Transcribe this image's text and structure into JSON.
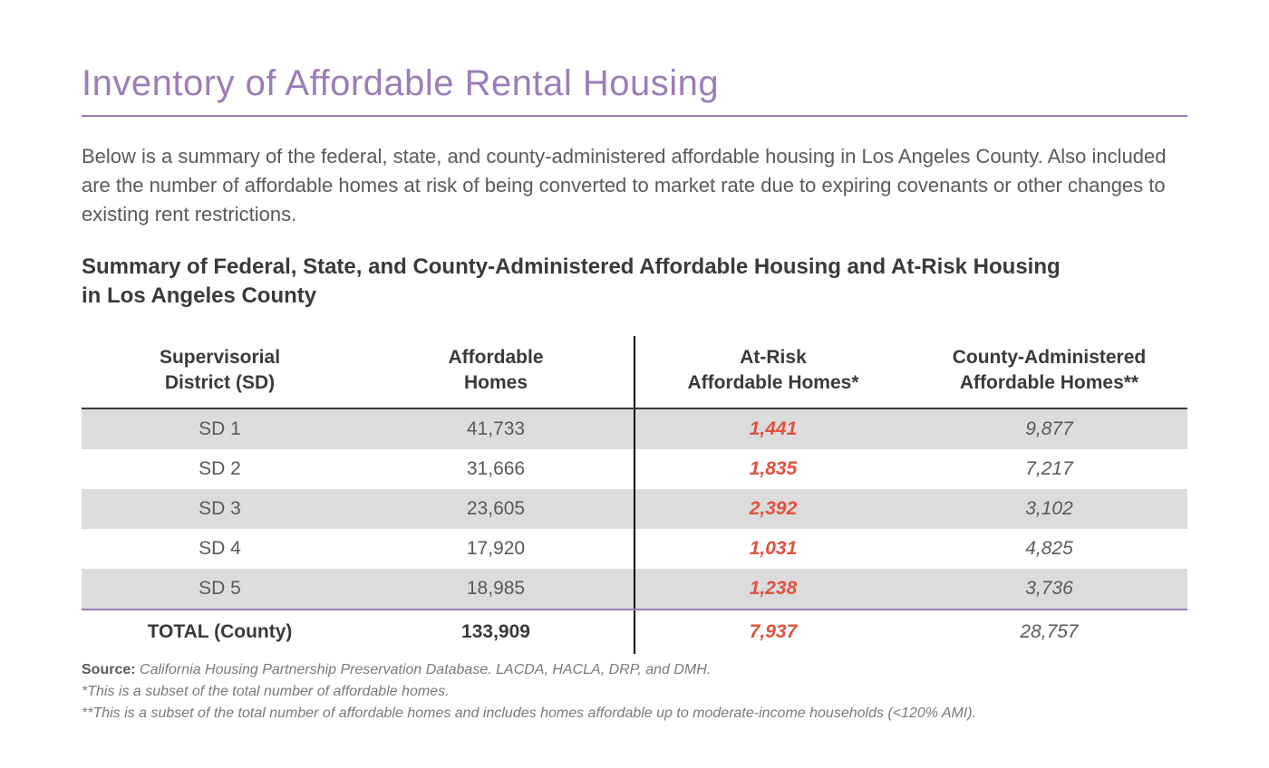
{
  "title": "Inventory of Affordable Rental Housing",
  "intro": "Below is a summary of the federal, state, and county-administered affordable housing in Los Angeles County. Also included are the number of affordable homes at risk of being converted to market rate due to expiring covenants or other changes to existing rent restrictions.",
  "subtitle": "Summary of Federal, State, and County-Administered Affordable Housing and At-Risk Housing in Los Angeles County",
  "table": {
    "type": "table",
    "columns": [
      {
        "label_line1": "Supervisorial",
        "label_line2": "District (SD)",
        "align": "center"
      },
      {
        "label_line1": "Affordable",
        "label_line2": "Homes",
        "align": "center"
      },
      {
        "label_line1": "At-Risk",
        "label_line2": "Affordable Homes*",
        "align": "center",
        "color": "#e0523e",
        "italic": true
      },
      {
        "label_line1": "County-Administered",
        "label_line2": "Affordable Homes**",
        "align": "center",
        "italic": true
      }
    ],
    "rows": [
      {
        "district": "SD 1",
        "affordable": "41,733",
        "at_risk": "1,441",
        "county_admin": "9,877"
      },
      {
        "district": "SD 2",
        "affordable": "31,666",
        "at_risk": "1,835",
        "county_admin": "7,217"
      },
      {
        "district": "SD 3",
        "affordable": "23,605",
        "at_risk": "2,392",
        "county_admin": "3,102"
      },
      {
        "district": "SD 4",
        "affordable": "17,920",
        "at_risk": "1,031",
        "county_admin": "4,825"
      },
      {
        "district": "SD 5",
        "affordable": "18,985",
        "at_risk": "1,238",
        "county_admin": "3,736"
      }
    ],
    "total": {
      "label": "TOTAL (County)",
      "affordable": "133,909",
      "at_risk": "7,937",
      "county_admin": "28,757"
    },
    "stripe_color": "#dcdcdc",
    "divider_color": "#000000",
    "header_border_color": "#3a3a3a",
    "bottom_border_color": "#9d7db8",
    "at_risk_color": "#e0523e",
    "text_color": "#5a5a5a",
    "header_fontsize": 21,
    "cell_fontsize": 21
  },
  "footnotes": {
    "source_label": "Source:",
    "source_text": " California Housing Partnership Preservation Database. LACDA, HACLA, DRP, and DMH.",
    "note1": "*This is a subset of the total number of affordable homes.",
    "note2": "**This is a subset of the total number of affordable homes and includes homes affordable up to moderate-income households (<120% AMI)."
  },
  "colors": {
    "title": "#9d7db8",
    "text": "#5a5a5a",
    "heading": "#3a3a3a",
    "accent_red": "#e0523e",
    "background": "#ffffff"
  },
  "typography": {
    "title_fontsize": 40,
    "intro_fontsize": 22,
    "subtitle_fontsize": 24,
    "footnote_fontsize": 16,
    "font_family": "Helvetica Neue"
  }
}
